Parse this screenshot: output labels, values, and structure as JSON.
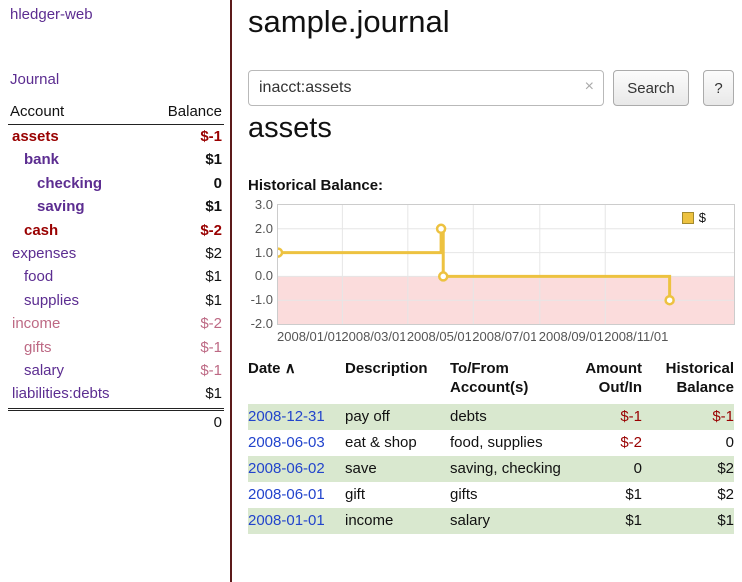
{
  "colors": {
    "brand_purple": "#5c2d91",
    "negative_red": "#990000",
    "rose_negative": "#bd6984",
    "link_blue": "#2244cc",
    "row_green": "#d9e8cf",
    "divider_maroon": "#5c1a1a"
  },
  "app": {
    "sidebar_title": "hledger-web",
    "nav_journal": "Journal"
  },
  "sidebar": {
    "header": {
      "account": "Account",
      "balance": "Balance"
    },
    "accounts": [
      {
        "name": "assets",
        "balance": "$-1"
      },
      {
        "name": "bank",
        "balance": "$1"
      },
      {
        "name": "checking",
        "balance": "0"
      },
      {
        "name": "saving",
        "balance": "$1"
      },
      {
        "name": "cash",
        "balance": "$-2"
      },
      {
        "name": "expenses",
        "balance": "$2"
      },
      {
        "name": "food",
        "balance": "$1"
      },
      {
        "name": "supplies",
        "balance": "$1"
      },
      {
        "name": "income",
        "balance": "$-2"
      },
      {
        "name": "gifts",
        "balance": "$-1"
      },
      {
        "name": "salary",
        "balance": "$-1"
      },
      {
        "name": "liabilities:debts",
        "balance": "$1"
      }
    ],
    "total": "0"
  },
  "main": {
    "title": "sample.journal",
    "search": {
      "value": "inacct:assets",
      "clear": "×",
      "submit": "Search",
      "help": "?"
    },
    "section_heading": "assets",
    "chart_title": "Historical Balance:"
  },
  "chart_data": {
    "type": "line",
    "step": true,
    "title": "Historical Balance:",
    "ylim": [
      -2,
      3
    ],
    "y_ticks": [
      3.0,
      2.0,
      1.0,
      0.0,
      -1.0,
      -2.0
    ],
    "x_ticks": [
      "2008/01/01",
      "2008/03/01",
      "2008/05/01",
      "2008/07/01",
      "2008/09/01",
      "2008/11/01"
    ],
    "xlim": [
      "2008/01/01",
      "2009/03/01"
    ],
    "grid": true,
    "legend_position": "top-right",
    "legend": [
      {
        "label": "$",
        "color": "#edc240"
      }
    ],
    "negative_region": {
      "from": 0,
      "to": -2,
      "color": "#fbdcdc"
    },
    "series": [
      {
        "name": "$",
        "color": "#edc240",
        "points": [
          {
            "x": "2008/01/01",
            "y": 1
          },
          {
            "x": "2008/06/01",
            "y": 2
          },
          {
            "x": "2008/06/03",
            "y": 0
          },
          {
            "x": "2008/12/31",
            "y": -1
          }
        ]
      }
    ]
  },
  "table": {
    "headers": {
      "date": "Date",
      "sort": "∧",
      "description": "Description",
      "accounts": "To/From Account(s)",
      "amount": "Amount Out/In",
      "balance": "Historical Balance"
    },
    "rows": [
      {
        "date": "2008-12-31",
        "description": "pay off",
        "accounts": "debts",
        "amount": "$-1",
        "balance": "$-1"
      },
      {
        "date": "2008-06-03",
        "description": "eat & shop",
        "accounts": "food, supplies",
        "amount": "$-2",
        "balance": "0"
      },
      {
        "date": "2008-06-02",
        "description": "save",
        "accounts": "saving, checking",
        "amount": "0",
        "balance": "$2"
      },
      {
        "date": "2008-06-01",
        "description": "gift",
        "accounts": "gifts",
        "amount": "$1",
        "balance": "$2"
      },
      {
        "date": "2008-01-01",
        "description": "income",
        "accounts": "salary",
        "amount": "$1",
        "balance": "$1"
      }
    ]
  }
}
